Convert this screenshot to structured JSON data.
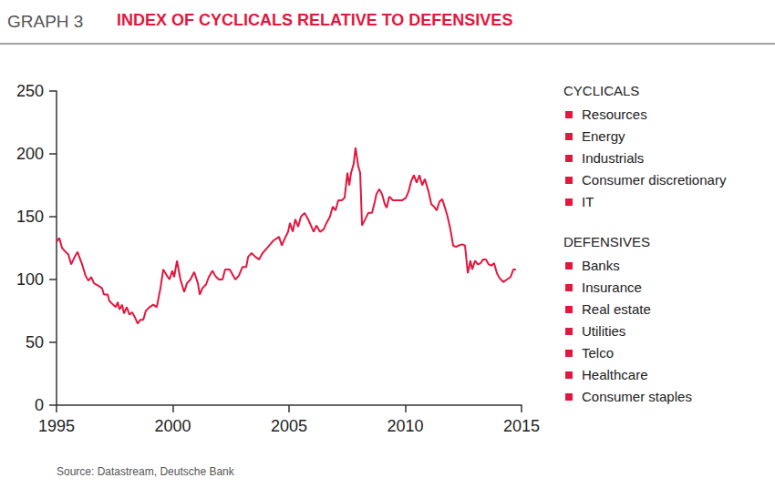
{
  "chart_data": {
    "type": "line",
    "figure_label": "GRAPH 3",
    "title": "INDEX OF CYCLICALS RELATIVE TO DEFENSIVES",
    "source": "Source: Datastream, Deutsche Bank",
    "annotations": [
      {
        "heading": "CYCLICALS",
        "items": [
          "Resources",
          "Energy",
          "Industrials",
          "Consumer discretionary",
          "IT"
        ]
      },
      {
        "heading": "DEFENSIVES",
        "items": [
          "Banks",
          "Insurance",
          "Real estate",
          "Utilities",
          "Telco",
          "Healthcare",
          "Consumer staples"
        ]
      }
    ],
    "color": "#e3173e",
    "grid": false,
    "xlim": [
      1995,
      2015
    ],
    "xticks": [
      1995,
      2000,
      2005,
      2010,
      2015
    ],
    "ylim": [
      0,
      250
    ],
    "yticks": [
      0,
      50,
      100,
      150,
      200,
      250
    ],
    "x": [
      1995.0,
      1995.12,
      1995.24,
      1995.39,
      1995.51,
      1995.63,
      1995.78,
      1995.9,
      1996.1,
      1996.25,
      1996.37,
      1996.49,
      1996.61,
      1996.8,
      1996.96,
      1997.04,
      1997.2,
      1997.27,
      1997.43,
      1997.55,
      1997.63,
      1997.71,
      1997.82,
      1997.9,
      1998.02,
      1998.14,
      1998.25,
      1998.37,
      1998.49,
      1998.61,
      1998.73,
      1998.84,
      1999.0,
      1999.16,
      1999.31,
      1999.47,
      1999.59,
      1999.75,
      1999.86,
      1999.98,
      2000.06,
      2000.18,
      2000.33,
      2000.49,
      2000.61,
      2000.76,
      2000.92,
      2001.08,
      2001.16,
      2001.27,
      2001.43,
      2001.55,
      2001.71,
      2001.82,
      2001.98,
      2002.14,
      2002.25,
      2002.45,
      2002.57,
      2002.69,
      2002.84,
      2003.0,
      2003.16,
      2003.24,
      2003.39,
      2003.55,
      2003.71,
      2003.86,
      2004.1,
      2004.33,
      2004.57,
      2004.69,
      2004.8,
      2004.96,
      2005.04,
      2005.16,
      2005.27,
      2005.39,
      2005.51,
      2005.67,
      2005.82,
      2005.94,
      2006.06,
      2006.18,
      2006.33,
      2006.49,
      2006.61,
      2006.76,
      2006.88,
      2007.0,
      2007.12,
      2007.27,
      2007.39,
      2007.51,
      2007.59,
      2007.67,
      2007.78,
      2007.86,
      2007.98,
      2008.06,
      2008.14,
      2008.25,
      2008.41,
      2008.57,
      2008.69,
      2008.76,
      2008.88,
      2009.0,
      2009.12,
      2009.2,
      2009.31,
      2009.47,
      2009.67,
      2009.86,
      2010.02,
      2010.14,
      2010.25,
      2010.37,
      2010.49,
      2010.61,
      2010.73,
      2010.84,
      2011.0,
      2011.12,
      2011.24,
      2011.35,
      2011.47,
      2011.59,
      2011.71,
      2011.82,
      2011.94,
      2012.06,
      2012.18,
      2012.29,
      2012.45,
      2012.57,
      2012.69,
      2012.8,
      2012.88,
      2013.0,
      2013.12,
      2013.24,
      2013.35,
      2013.47,
      2013.59,
      2013.71,
      2013.82,
      2013.94,
      2014.06,
      2014.22,
      2014.37,
      2014.53,
      2014.65,
      2014.76
    ],
    "values": [
      130,
      133,
      125,
      122,
      120,
      112,
      118,
      122,
      112,
      103,
      99,
      102,
      97,
      95,
      93,
      88,
      88,
      83,
      80,
      78,
      82,
      76,
      80,
      73,
      78,
      72,
      74,
      70,
      65,
      68,
      68,
      75,
      78,
      80,
      78,
      93,
      108,
      103,
      100,
      107,
      102,
      115,
      100,
      90,
      97,
      100,
      106,
      97,
      88,
      93,
      96,
      102,
      107,
      103,
      100,
      100,
      108,
      108,
      104,
      100,
      103,
      110,
      110,
      118,
      121,
      118,
      116,
      121,
      126,
      131,
      134,
      127,
      132,
      138,
      145,
      138,
      148,
      142,
      150,
      153,
      148,
      143,
      138,
      143,
      138,
      140,
      145,
      150,
      158,
      155,
      163,
      163,
      165,
      185,
      175,
      185,
      192,
      205,
      190,
      185,
      143,
      147,
      153,
      153,
      162,
      168,
      172,
      168,
      160,
      157,
      166,
      163,
      163,
      163,
      165,
      170,
      178,
      183,
      177,
      183,
      175,
      180,
      170,
      160,
      158,
      155,
      162,
      164,
      157,
      150,
      140,
      127,
      126,
      127,
      128,
      127,
      105,
      115,
      108,
      115,
      112,
      113,
      116,
      116,
      112,
      111,
      113,
      105,
      101,
      98,
      100,
      102,
      108,
      108
    ]
  }
}
